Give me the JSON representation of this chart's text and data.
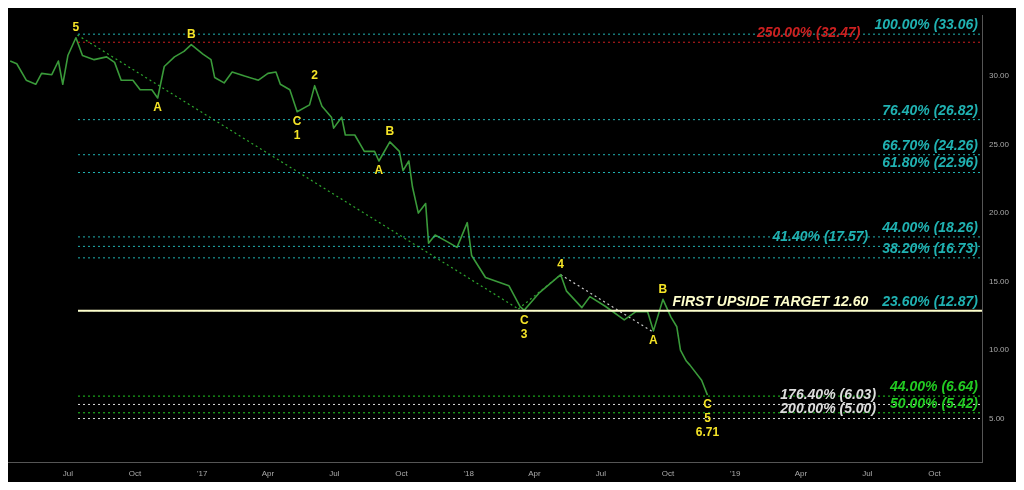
{
  "chart_data": {
    "type": "line",
    "xlim": [
      "2016-04-10",
      "2019-12-05"
    ],
    "xticks": [
      {
        "value": "2016-07-01",
        "label": "Jul"
      },
      {
        "value": "2016-10-01",
        "label": "Oct"
      },
      {
        "value": "2017-01-01",
        "label": "'17"
      },
      {
        "value": "2017-04-01",
        "label": "Apr"
      },
      {
        "value": "2017-07-01",
        "label": "Jul"
      },
      {
        "value": "2017-10-01",
        "label": "Oct"
      },
      {
        "value": "2018-01-01",
        "label": "'18"
      },
      {
        "value": "2018-04-01",
        "label": "Apr"
      },
      {
        "value": "2018-07-01",
        "label": "Jul"
      },
      {
        "value": "2018-10-01",
        "label": "Oct"
      },
      {
        "value": "2019-01-01",
        "label": "'19"
      },
      {
        "value": "2019-04-01",
        "label": "Apr"
      },
      {
        "value": "2019-07-01",
        "label": "Jul"
      },
      {
        "value": "2019-10-01",
        "label": "Oct"
      }
    ],
    "ylim": [
      1.8,
      34.4
    ],
    "yticks": [
      {
        "value": 5,
        "label": "5.00"
      },
      {
        "value": 10,
        "label": "10.00"
      },
      {
        "value": 15,
        "label": "15.00"
      },
      {
        "value": 20,
        "label": "20.00"
      },
      {
        "value": 25,
        "label": "25.00"
      },
      {
        "value": 30,
        "label": "30.00"
      }
    ],
    "grid": false,
    "legend": false,
    "marker": "none",
    "series": [
      {
        "color": "#3a9a3a",
        "x": [
          "2016-04-13",
          "2016-04-22",
          "2016-05-05",
          "2016-05-18",
          "2016-05-26",
          "2016-06-09",
          "2016-06-18",
          "2016-06-24",
          "2016-07-01",
          "2016-07-12",
          "2016-07-21",
          "2016-08-06",
          "2016-08-23",
          "2016-09-03",
          "2016-09-12",
          "2016-09-28",
          "2016-10-08",
          "2016-10-24",
          "2016-11-01",
          "2016-11-10",
          "2016-11-24",
          "2016-12-07",
          "2016-12-17",
          "2017-01-02",
          "2017-01-13",
          "2017-01-18",
          "2017-01-31",
          "2017-02-11",
          "2017-02-28",
          "2017-03-19",
          "2017-04-01",
          "2017-04-12",
          "2017-04-18",
          "2017-05-01",
          "2017-05-11",
          "2017-05-28",
          "2017-06-04",
          "2017-06-14",
          "2017-06-27",
          "2017-06-30",
          "2017-07-11",
          "2017-07-16",
          "2017-07-29",
          "2017-08-11",
          "2017-08-25",
          "2017-08-31",
          "2017-09-15",
          "2017-09-28",
          "2017-10-03",
          "2017-10-11",
          "2017-10-16",
          "2017-10-24",
          "2017-11-03",
          "2017-11-07",
          "2017-11-16",
          "2017-12-03",
          "2017-12-16",
          "2017-12-30",
          "2018-01-05",
          "2018-01-24",
          "2018-02-25",
          "2018-03-12",
          "2018-03-18",
          "2018-04-08",
          "2018-05-07",
          "2018-05-15",
          "2018-06-05",
          "2018-06-16",
          "2018-07-07",
          "2018-08-02",
          "2018-08-18",
          "2018-09-03",
          "2018-09-11",
          "2018-09-24",
          "2018-10-05",
          "2018-10-13",
          "2018-10-18",
          "2018-10-26",
          "2018-10-31",
          "2018-11-16",
          "2018-11-24"
        ],
        "values": [
          31.1,
          30.9,
          29.7,
          29.4,
          30.2,
          30.1,
          31.1,
          29.4,
          31.5,
          32.8,
          31.5,
          31.2,
          31.4,
          31.0,
          29.7,
          29.7,
          29.0,
          29.0,
          28.4,
          30.7,
          31.4,
          31.8,
          32.3,
          31.6,
          31.2,
          29.9,
          29.5,
          30.3,
          30.0,
          29.7,
          30.2,
          30.3,
          29.4,
          29.0,
          27.4,
          27.9,
          29.3,
          27.8,
          27.0,
          26.2,
          27.0,
          25.7,
          25.7,
          24.5,
          24.5,
          23.8,
          25.2,
          24.5,
          23.1,
          23.8,
          21.9,
          20.0,
          20.7,
          17.8,
          18.4,
          17.9,
          17.5,
          19.3,
          16.9,
          15.3,
          14.7,
          13.2,
          12.9,
          14.2,
          15.5,
          14.3,
          13.1,
          13.9,
          13.2,
          12.2,
          12.8,
          12.8,
          11.4,
          13.7,
          12.4,
          11.7,
          10.0,
          9.2,
          8.9,
          7.8,
          6.71
        ]
      },
      {
        "color": "#2ea82e",
        "line_style": "dotted",
        "x": [
          "2016-07-14",
          "2018-03-10"
        ],
        "values": [
          33.0,
          13.0
        ]
      },
      {
        "color": "#2ea82e",
        "line_style": "dotted",
        "x": [
          "2018-03-10",
          "2018-05-07"
        ],
        "values": [
          13.0,
          15.5
        ]
      },
      {
        "color": "#cccccc",
        "line_style": "dotted",
        "x": [
          "2018-05-07",
          "2018-09-11"
        ],
        "values": [
          15.5,
          11.3
        ]
      }
    ],
    "ref_lines": [
      {
        "axis": "y",
        "value": 33.06,
        "label": "100.00% (33.06)",
        "color": "#20b2b2",
        "line_style": "dotted"
      },
      {
        "axis": "y",
        "value": 32.47,
        "label": "250.00% (32.47)",
        "color": "#cc2020",
        "line_style": "dotted"
      },
      {
        "axis": "y",
        "value": 26.82,
        "label": "76.40% (26.82)",
        "color": "#20b2b2",
        "line_style": "dotted"
      },
      {
        "axis": "y",
        "value": 24.26,
        "label": "66.70% (24.26)",
        "color": "#20b2b2",
        "line_style": "dotted"
      },
      {
        "axis": "y",
        "value": 22.96,
        "label": "61.80% (22.96)",
        "color": "#20b2b2",
        "line_style": "dotted"
      },
      {
        "axis": "y",
        "value": 18.26,
        "label": "44.00% (18.26)",
        "color": "#20b2b2",
        "line_style": "dotted"
      },
      {
        "axis": "y",
        "value": 17.57,
        "label": "41.40% (17.57)",
        "color": "#20b2b2",
        "line_style": "dotted"
      },
      {
        "axis": "y",
        "value": 16.73,
        "label": "38.20% (16.73)",
        "color": "#20b2b2",
        "line_style": "dotted"
      },
      {
        "axis": "y",
        "value": 12.87,
        "label": "23.60% (12.87)",
        "color": "#20b2b2",
        "line_style": "dotted"
      },
      {
        "axis": "y",
        "value": 12.87,
        "label": "FIRST UPSIDE TARGET 12.60",
        "color": "#ffffcc",
        "line_style": "solid"
      },
      {
        "axis": "y",
        "value": 6.64,
        "label": "44.00% (6.64)",
        "color": "#22cc22",
        "line_style": "dotted"
      },
      {
        "axis": "y",
        "value": 6.03,
        "label": "176.40% (6.03)",
        "color": "#dddddd",
        "line_style": "dotted"
      },
      {
        "axis": "y",
        "value": 5.42,
        "label": "50.00% (5.42)",
        "color": "#22cc22",
        "line_style": "dotted"
      },
      {
        "axis": "y",
        "value": 5.0,
        "label": "200.00% (5.00)",
        "color": "#dddddd",
        "line_style": "dotted"
      }
    ],
    "annotations": [
      {
        "text": "5",
        "x": "2016-07-12",
        "y": 32.8
      },
      {
        "text": "A",
        "x": "2016-11-01",
        "y": 28.4
      },
      {
        "text": "B",
        "x": "2016-12-17",
        "y": 32.3
      },
      {
        "text": "C",
        "x": "2017-05-11",
        "y": 27.4
      },
      {
        "text": "1",
        "x": "2017-05-11",
        "y": 27.4
      },
      {
        "text": "2",
        "x": "2017-06-04",
        "y": 29.3
      },
      {
        "text": "A",
        "x": "2017-08-31",
        "y": 23.8
      },
      {
        "text": "B",
        "x": "2017-09-15",
        "y": 25.2
      },
      {
        "text": "C",
        "x": "2018-03-18",
        "y": 12.9
      },
      {
        "text": "3",
        "x": "2018-03-18",
        "y": 12.9
      },
      {
        "text": "4",
        "x": "2018-05-07",
        "y": 15.5
      },
      {
        "text": "A",
        "x": "2018-09-11",
        "y": 11.4
      },
      {
        "text": "B",
        "x": "2018-09-24",
        "y": 13.7
      },
      {
        "text": "C",
        "x": "2018-11-24",
        "y": 6.71
      },
      {
        "text": "5",
        "x": "2018-11-24",
        "y": 6.71
      },
      {
        "text": "6.71",
        "x": "2018-11-24",
        "y": 6.71
      }
    ]
  }
}
